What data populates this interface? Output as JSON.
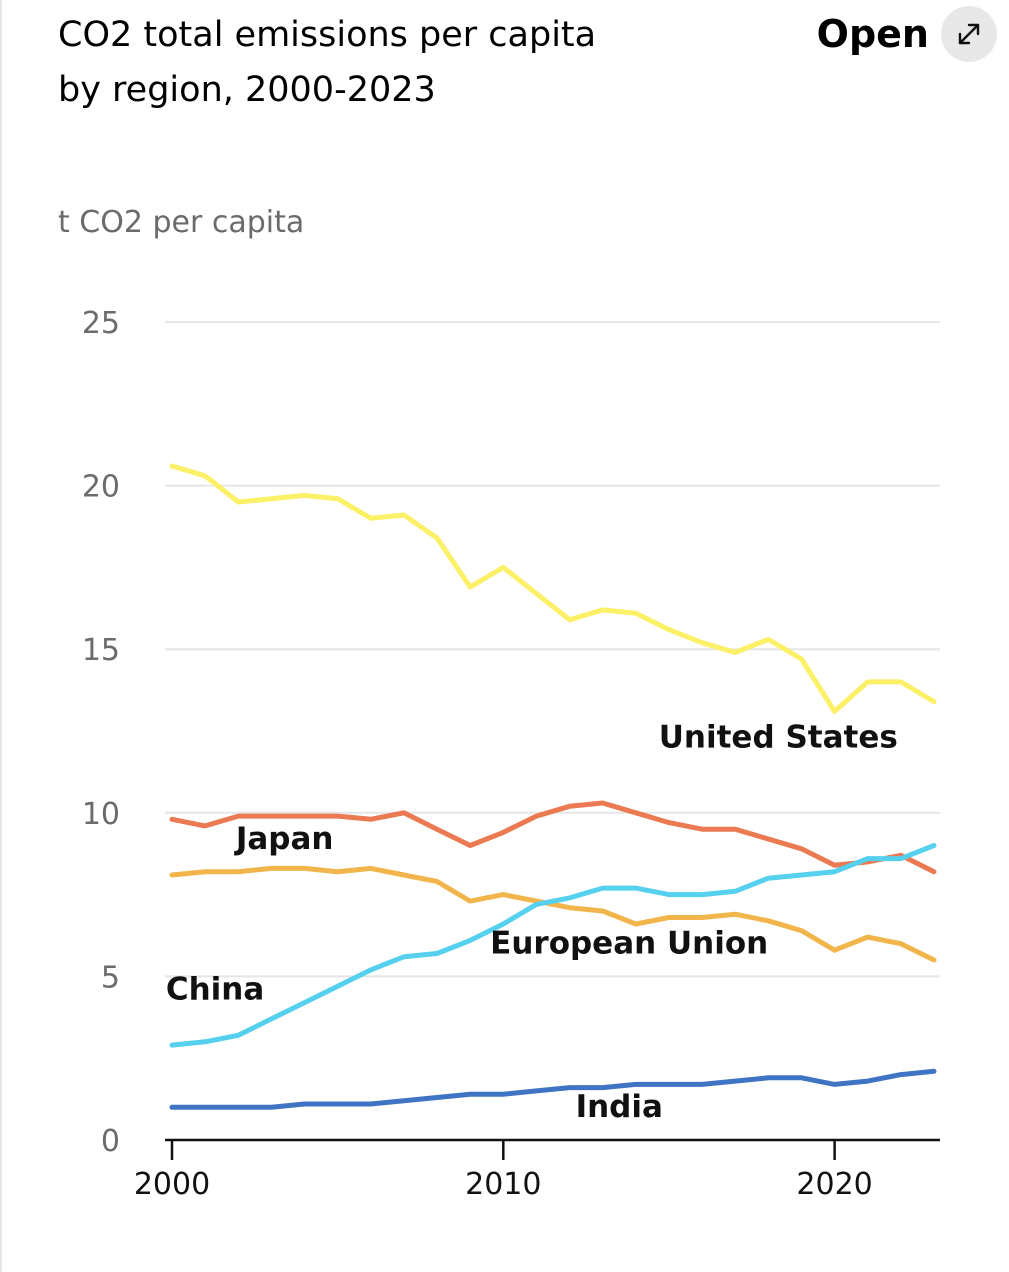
{
  "header": {
    "title_line1": "CO2 total emissions per capita",
    "title_line2": "by region, 2000-2023",
    "open_label": "Open",
    "open_icon": "expand-diagonal-arrows-icon"
  },
  "chart_data": {
    "type": "line",
    "title": "CO2 total emissions per capita by region, 2000-2023",
    "ylabel": "t CO2 per capita",
    "xlabel": "",
    "xlim": [
      2000,
      2023
    ],
    "ylim": [
      0,
      25
    ],
    "x_ticks": [
      2000,
      2010,
      2020
    ],
    "y_ticks": [
      0,
      5,
      10,
      15,
      20,
      25
    ],
    "grid": true,
    "x": [
      2000,
      2001,
      2002,
      2003,
      2004,
      2005,
      2006,
      2007,
      2008,
      2009,
      2010,
      2011,
      2012,
      2013,
      2014,
      2015,
      2016,
      2017,
      2018,
      2019,
      2020,
      2021,
      2022,
      2023
    ],
    "series": [
      {
        "name": "United States",
        "color": "#fbf066",
        "values": [
          20.6,
          20.3,
          19.5,
          19.6,
          19.7,
          19.6,
          19.0,
          19.1,
          18.4,
          16.9,
          17.5,
          16.7,
          15.9,
          16.2,
          16.1,
          15.6,
          15.2,
          14.9,
          15.3,
          14.7,
          13.1,
          14.0,
          14.0,
          13.4
        ]
      },
      {
        "name": "Japan",
        "color": "#eb7a52",
        "values": [
          9.8,
          9.6,
          9.9,
          9.9,
          9.9,
          9.9,
          9.8,
          10.0,
          9.5,
          9.0,
          9.4,
          9.9,
          10.2,
          10.3,
          10.0,
          9.7,
          9.5,
          9.5,
          9.2,
          8.9,
          8.4,
          8.5,
          8.7,
          8.2
        ]
      },
      {
        "name": "European Union",
        "color": "#f2b54b",
        "values": [
          8.1,
          8.2,
          8.2,
          8.3,
          8.3,
          8.2,
          8.3,
          8.1,
          7.9,
          7.3,
          7.5,
          7.3,
          7.1,
          7.0,
          6.6,
          6.8,
          6.8,
          6.9,
          6.7,
          6.4,
          5.8,
          6.2,
          6.0,
          5.5
        ]
      },
      {
        "name": "China",
        "color": "#56d0ef",
        "values": [
          2.9,
          3.0,
          3.2,
          3.7,
          4.2,
          4.7,
          5.2,
          5.6,
          5.7,
          6.1,
          6.6,
          7.2,
          7.4,
          7.7,
          7.7,
          7.5,
          7.5,
          7.6,
          8.0,
          8.1,
          8.2,
          8.6,
          8.6,
          9.0
        ]
      },
      {
        "name": "India",
        "color": "#3f74c4",
        "values": [
          1.0,
          1.0,
          1.0,
          1.0,
          1.1,
          1.1,
          1.1,
          1.2,
          1.3,
          1.4,
          1.4,
          1.5,
          1.6,
          1.6,
          1.7,
          1.7,
          1.7,
          1.8,
          1.9,
          1.9,
          1.7,
          1.8,
          2.0,
          2.1
        ]
      }
    ],
    "series_labels": [
      {
        "text": "United States",
        "series": 0,
        "anchor_x": 2018.3,
        "anchor_y": 12.0
      },
      {
        "text": "Japan",
        "series": 1,
        "anchor_x": 2003.4,
        "anchor_y": 8.9
      },
      {
        "text": "European Union",
        "series": 2,
        "anchor_x": 2013.8,
        "anchor_y": 5.7
      },
      {
        "text": "China",
        "series": 3,
        "anchor_x": 2001.3,
        "anchor_y": 4.3
      },
      {
        "text": "India",
        "series": 4,
        "anchor_x": 2013.5,
        "anchor_y": 0.7
      }
    ]
  }
}
